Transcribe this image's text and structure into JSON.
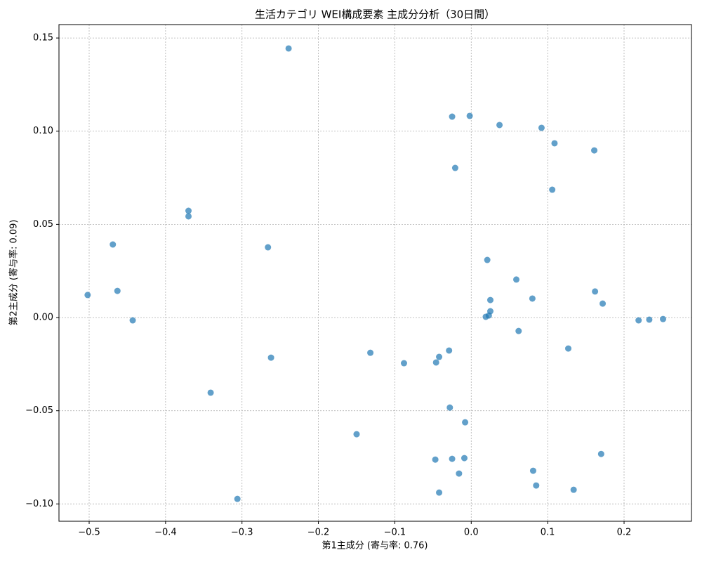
{
  "chart_data": {
    "type": "scatter",
    "title": "生活カテゴリ WEI構成要素 主成分分析（30日間）",
    "xlabel": "第1主成分 (寄与率: 0.76)",
    "ylabel": "第2主成分 (寄与率: 0.09)",
    "color": "#1f77b4",
    "grid": true,
    "xlim": [
      -0.5395,
      0.2882
    ],
    "ylim": [
      -0.1093,
      0.1572
    ],
    "xticks": [
      {
        "value": -0.5,
        "label": "−0.5"
      },
      {
        "value": -0.4,
        "label": "−0.4"
      },
      {
        "value": -0.3,
        "label": "−0.3"
      },
      {
        "value": -0.2,
        "label": "−0.2"
      },
      {
        "value": -0.1,
        "label": "−0.1"
      },
      {
        "value": 0,
        "label": "0.0"
      },
      0.1,
      0.2
    ],
    "yticks": [
      {
        "value": -0.1,
        "label": "−0.10"
      },
      {
        "value": -0.05,
        "label": "−0.05"
      },
      {
        "value": 0,
        "label": "0.00"
      },
      0.05,
      {
        "value": 0.1,
        "label": "0.10"
      },
      0.15
    ],
    "series": [
      {
        "x": [
          -0.239,
          -0.025,
          -0.002,
          0.037,
          0.092,
          0.109,
          0.161,
          -0.021,
          0.106,
          -0.37,
          -0.37,
          -0.469,
          -0.266,
          0.021,
          0.059,
          -0.463,
          -0.502,
          0.162,
          0.025,
          0.08,
          0.172,
          0.025,
          -0.443,
          0.023,
          0.019,
          0.219,
          0.233,
          0.251,
          0.062,
          0.127,
          -0.132,
          -0.029,
          -0.042,
          -0.262,
          -0.046,
          -0.088,
          -0.341,
          -0.028,
          -0.008,
          -0.15,
          0.17,
          -0.047,
          -0.025,
          -0.009,
          0.081,
          -0.016,
          0.085,
          0.134,
          -0.042,
          -0.306
        ],
        "values": [
          0.1444,
          0.1078,
          0.1082,
          0.1033,
          0.1018,
          0.0935,
          0.0897,
          0.0803,
          0.0686,
          0.0573,
          0.0543,
          0.0392,
          0.0377,
          0.0309,
          0.0204,
          0.0143,
          0.0121,
          0.014,
          0.0094,
          0.0102,
          0.0075,
          0.0034,
          -0.0015,
          0.0011,
          0.0004,
          -0.0015,
          -0.0011,
          -0.0008,
          -0.0072,
          -0.0166,
          -0.0189,
          -0.0177,
          -0.0211,
          -0.0215,
          -0.0241,
          -0.0245,
          -0.0403,
          -0.0483,
          -0.0562,
          -0.0626,
          -0.0732,
          -0.0762,
          -0.0758,
          -0.0754,
          -0.0822,
          -0.0837,
          -0.0901,
          -0.0924,
          -0.0939,
          -0.0973
        ]
      }
    ]
  }
}
